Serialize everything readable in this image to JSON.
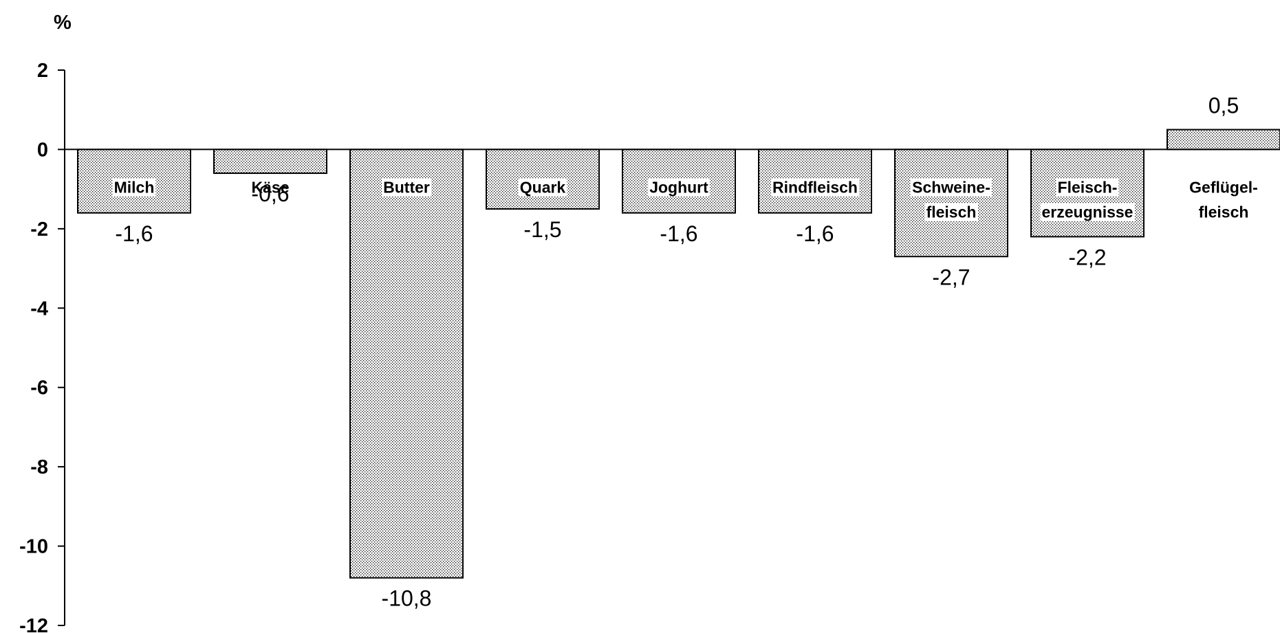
{
  "chart_data": {
    "type": "bar",
    "y_unit_label": "%",
    "categories": [
      [
        "Milch"
      ],
      [
        "Käse"
      ],
      [
        "Butter"
      ],
      [
        "Quark"
      ],
      [
        "Joghurt"
      ],
      [
        "Rindfleisch"
      ],
      [
        "Schweine-",
        "fleisch"
      ],
      [
        "Fleisch-",
        "erzeugnisse"
      ],
      [
        "Geflügel-",
        "fleisch"
      ]
    ],
    "values": [
      -1.6,
      -0.6,
      -10.8,
      -1.5,
      -1.6,
      -1.6,
      -2.7,
      -2.2,
      0.5
    ],
    "value_labels": [
      "-1,6",
      "-0,6",
      "-10,8",
      "-1,5",
      "-1,6",
      "-1,6",
      "-2,7",
      "-2,2",
      "0,5"
    ],
    "ylim": [
      -12,
      2
    ],
    "yticks": [
      2,
      0,
      -2,
      -4,
      -6,
      -8,
      -10,
      -12
    ],
    "ytick_labels": [
      "2",
      "0",
      "-2",
      "-4",
      "-6",
      "-8",
      "-10",
      "-12"
    ],
    "bar_fill": "dotted",
    "grid": false,
    "legend": "none"
  }
}
